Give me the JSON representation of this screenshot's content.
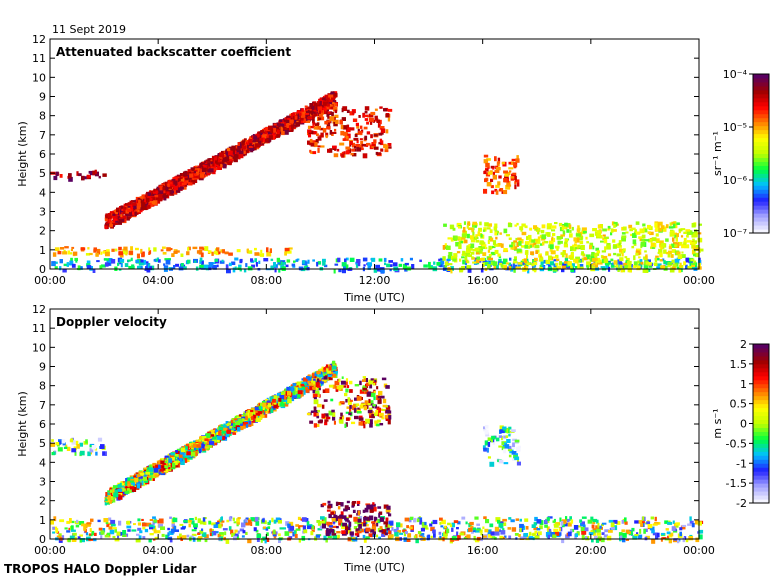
{
  "date_label": "11 Sept 2019",
  "footer_label": "TROPOS HALO Doppler Lidar",
  "chart_data": [
    {
      "type": "heatmap",
      "title": "Attenuated backscatter coefficient",
      "xlabel": "Time (UTC)",
      "ylabel": "Height (km)",
      "x_ticks": [
        "00:00",
        "04:00",
        "08:00",
        "12:00",
        "16:00",
        "20:00",
        "00:00"
      ],
      "x_range_hours": [
        0,
        24
      ],
      "y_ticks": [
        "0",
        "1",
        "2",
        "3",
        "4",
        "5",
        "6",
        "7",
        "8",
        "9",
        "10",
        "11",
        "12"
      ],
      "ylim": [
        0,
        12
      ],
      "colorbar": {
        "unit_label": "sr⁻¹ m⁻¹",
        "scale": "log",
        "ticks": [
          {
            "label": "10⁻⁴",
            "value": 0.0001
          },
          {
            "label": "10⁻⁵",
            "value": 1e-05
          },
          {
            "label": "10⁻⁶",
            "value": 1e-06
          },
          {
            "label": "10⁻⁷",
            "value": 1e-07
          }
        ],
        "colors": [
          "#f4f4ff",
          "#a0a0ff",
          "#2020ff",
          "#00c0ff",
          "#00ff40",
          "#c0ff00",
          "#ffff00",
          "#ff8000",
          "#ff0000",
          "#a00000",
          "#5a0060"
        ]
      },
      "features": [
        {
          "name": "boundary layer aerosol",
          "t_start": 0.0,
          "t_end": 24.0,
          "h_bottom": 0.0,
          "h_top": 0.6,
          "value": 0.3
        },
        {
          "name": "residual aerosol layer",
          "t_start": 0.0,
          "t_end": 9.0,
          "h_bottom": 0.8,
          "h_top": 1.2,
          "value": 0.65
        },
        {
          "name": "morning aerosol layer",
          "t_start": 0.0,
          "t_end": 2.0,
          "h_bottom": 4.8,
          "h_top": 5.2,
          "value": 0.9
        },
        {
          "name": "rising elevated layer",
          "t_start": 2.0,
          "t_end": 10.5,
          "h_bottom": 2.5,
          "h_top": 9.0,
          "value": 0.85
        },
        {
          "name": "upper level cloud",
          "t_start": 9.5,
          "t_end": 12.5,
          "h_bottom": 6.0,
          "h_top": 8.5,
          "value": 0.8
        },
        {
          "name": "afternoon convective clouds",
          "t_start": 14.5,
          "t_end": 24.0,
          "h_bottom": 0.0,
          "h_top": 2.5,
          "value": 0.55
        },
        {
          "name": "mid level cloud",
          "t_start": 16.0,
          "t_end": 17.3,
          "h_bottom": 4.0,
          "h_top": 6.0,
          "value": 0.75
        }
      ]
    },
    {
      "type": "heatmap",
      "title": "Doppler velocity",
      "xlabel": "Time (UTC)",
      "ylabel": "Height (km)",
      "x_ticks": [
        "00:00",
        "04:00",
        "08:00",
        "12:00",
        "16:00",
        "20:00",
        "00:00"
      ],
      "x_range_hours": [
        0,
        24
      ],
      "y_ticks": [
        "0",
        "1",
        "2",
        "3",
        "4",
        "5",
        "6",
        "7",
        "8",
        "9",
        "10",
        "11",
        "12"
      ],
      "ylim": [
        0,
        12
      ],
      "colorbar": {
        "unit_label": "m s⁻¹",
        "scale": "linear",
        "range": [
          -2,
          2
        ],
        "ticks": [
          {
            "label": "2",
            "value": 2
          },
          {
            "label": "1.5",
            "value": 1.5
          },
          {
            "label": "1",
            "value": 1
          },
          {
            "label": "0.5",
            "value": 0.5
          },
          {
            "label": "0",
            "value": 0
          },
          {
            "label": "-0.5",
            "value": -0.5
          },
          {
            "label": "-1",
            "value": -1
          },
          {
            "label": "-1.5",
            "value": -1.5
          },
          {
            "label": "-2",
            "value": -2
          }
        ],
        "colors": [
          "#f4f4ff",
          "#a0a0ff",
          "#2020ff",
          "#00c0ff",
          "#00ff40",
          "#c0ff00",
          "#ffff00",
          "#ff8000",
          "#ff0000",
          "#a00000",
          "#5a0060"
        ]
      },
      "features": [
        {
          "name": "morning aerosol layer",
          "t_start": 0.0,
          "t_end": 2.0,
          "h_bottom": 4.5,
          "h_top": 5.3,
          "value": -0.8
        },
        {
          "name": "rising elevated layer",
          "t_start": 2.0,
          "t_end": 10.5,
          "h_bottom": 2.2,
          "h_top": 9.0,
          "value": 0.1
        },
        {
          "name": "upper level cloud",
          "t_start": 9.5,
          "t_end": 12.5,
          "h_bottom": 6.0,
          "h_top": 8.5,
          "value": 1.0
        },
        {
          "name": "boundary layer",
          "t_start": 0.0,
          "t_end": 24.0,
          "h_bottom": 0.0,
          "h_top": 1.2,
          "value": -0.3
        },
        {
          "name": "cloud base downdrafts",
          "t_start": 10.0,
          "t_end": 12.5,
          "h_bottom": 0.3,
          "h_top": 2.0,
          "value": 2.0
        },
        {
          "name": "mid level cloud",
          "t_start": 16.0,
          "t_end": 17.3,
          "h_bottom": 4.0,
          "h_top": 6.0,
          "value": -1.2
        }
      ]
    }
  ]
}
